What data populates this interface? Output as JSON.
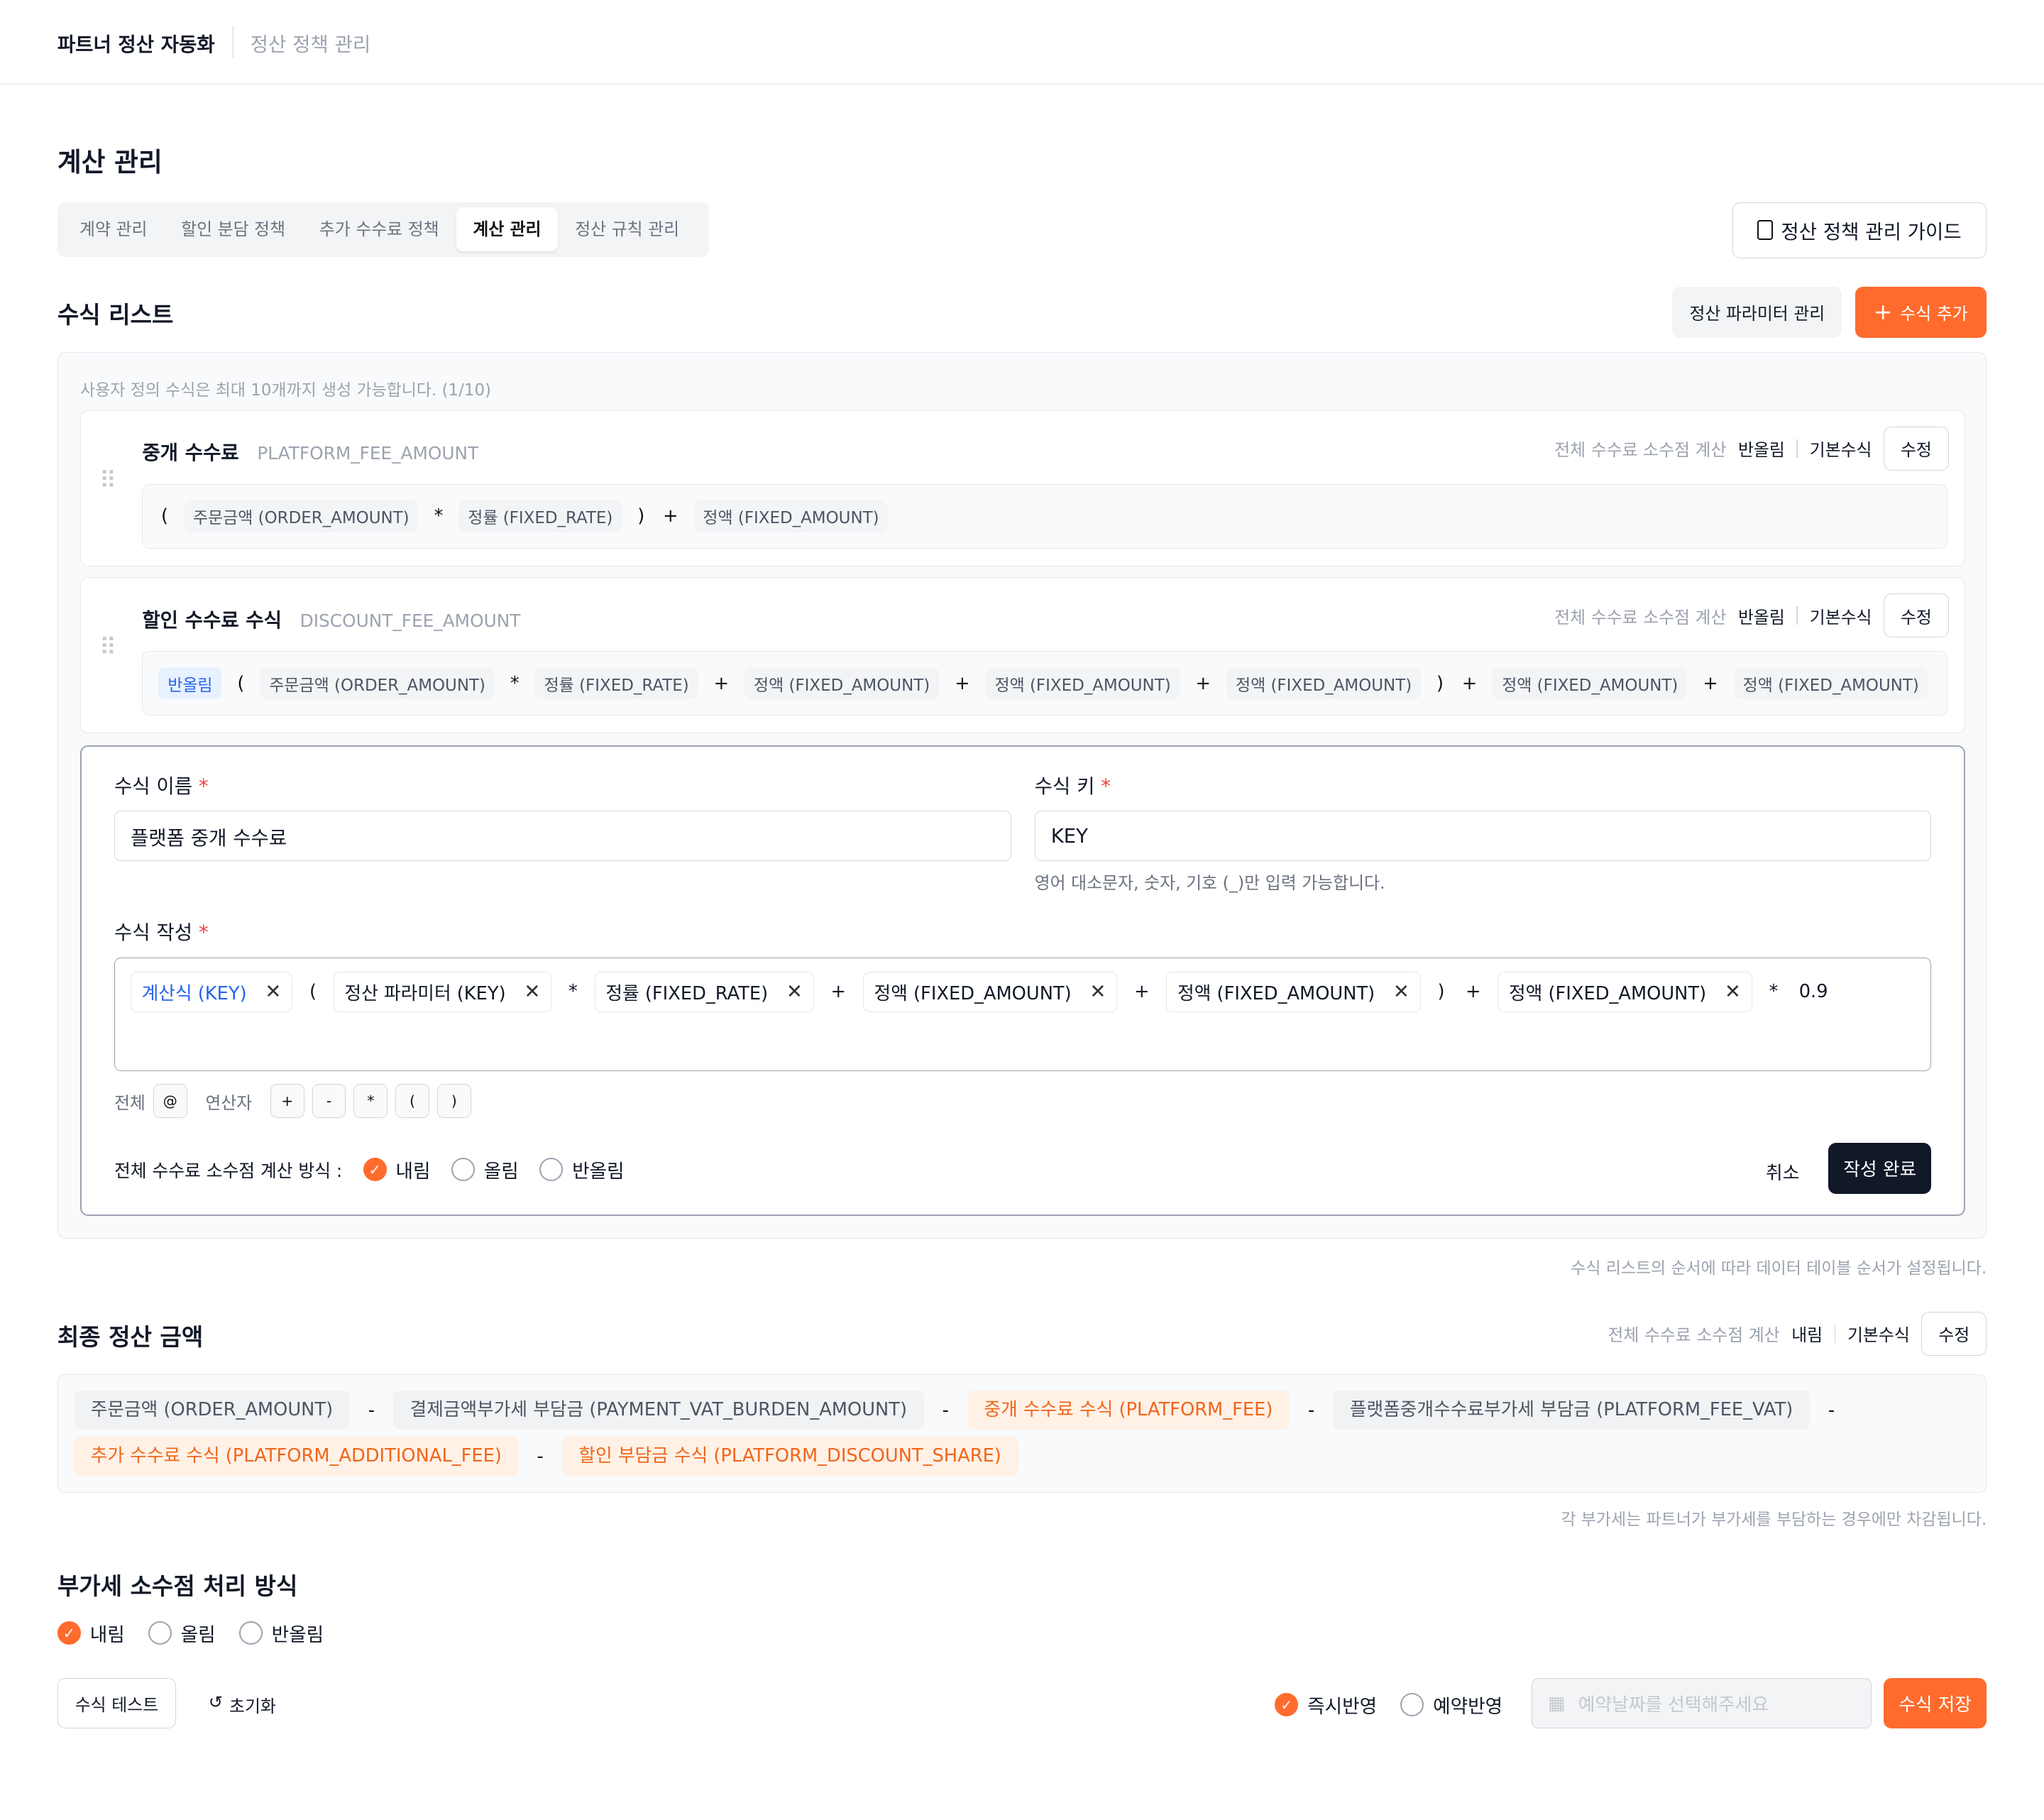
{
  "header": {
    "app": "파트너 정산 자동화",
    "section": "정산 정책 관리"
  },
  "page_title": "계산 관리",
  "tabs": [
    {
      "label": "계약 관리",
      "active": false
    },
    {
      "label": "할인 분담 정책",
      "active": false
    },
    {
      "label": "추가 수수료 정책",
      "active": false
    },
    {
      "label": "계산 관리",
      "active": true
    },
    {
      "label": "정산 규칙 관리",
      "active": false
    }
  ],
  "guide_button": "정산 정책 관리 가이드",
  "formula_list": {
    "title": "수식 리스트",
    "param_button": "정산 파라미터 관리",
    "add_button": "수식 추가",
    "note": "사용자 정의 수식은 최대 10개까지 생성 가능합니다. (1/10)",
    "items": [
      {
        "name": "중개 수수료",
        "key": "PLATFORM_FEE_AMOUNT",
        "meta_label": "전체 수수료 소수점 계산",
        "rounding": "반올림",
        "type": "기본수식",
        "edit": "수정",
        "tokens": [
          {
            "t": "op",
            "v": "("
          },
          {
            "t": "chip",
            "v": "주문금액 (ORDER_AMOUNT)"
          },
          {
            "t": "op",
            "v": "*"
          },
          {
            "t": "chip",
            "v": "정률 (FIXED_RATE)"
          },
          {
            "t": "op",
            "v": ")"
          },
          {
            "t": "op",
            "v": "+"
          },
          {
            "t": "chip",
            "v": "정액 (FIXED_AMOUNT)"
          }
        ]
      },
      {
        "name": "할인 수수료 수식",
        "key": "DISCOUNT_FEE_AMOUNT",
        "meta_label": "전체 수수료 소수점 계산",
        "rounding": "반올림",
        "type": "기본수식",
        "edit": "수정",
        "tokens": [
          {
            "t": "blue",
            "v": "반올림"
          },
          {
            "t": "op",
            "v": "("
          },
          {
            "t": "chip",
            "v": "주문금액 (ORDER_AMOUNT)"
          },
          {
            "t": "op",
            "v": "*"
          },
          {
            "t": "chip",
            "v": "정률 (FIXED_RATE)"
          },
          {
            "t": "op",
            "v": "+"
          },
          {
            "t": "chip",
            "v": "정액 (FIXED_AMOUNT)"
          },
          {
            "t": "op",
            "v": "+"
          },
          {
            "t": "chip",
            "v": "정액 (FIXED_AMOUNT)"
          },
          {
            "t": "op",
            "v": "+"
          },
          {
            "t": "chip",
            "v": "정액 (FIXED_AMOUNT)"
          },
          {
            "t": "op",
            "v": ")"
          },
          {
            "t": "op",
            "v": "+"
          },
          {
            "t": "chip",
            "v": "정액 (FIXED_AMOUNT)"
          },
          {
            "t": "op",
            "v": "+"
          },
          {
            "t": "chip",
            "v": "정액 (FIXED_AMOUNT)"
          }
        ]
      }
    ],
    "footnote": "수식 리스트의 순서에 따라 데이터 테이블 순서가 설정됩니다."
  },
  "editor": {
    "name_label": "수식 이름",
    "name_value": "플랫폼 중개 수수료",
    "key_label": "수식 키",
    "key_value": "KEY",
    "key_hint": "영어 대소문자, 숫자, 기호 (_)만 입력 가능합니다.",
    "formula_label": "수식 작성",
    "required": "*",
    "tokens": [
      {
        "t": "blue",
        "v": "계산식 (KEY)"
      },
      {
        "t": "op",
        "v": "("
      },
      {
        "t": "chip",
        "v": "정산 파라미터 (KEY)"
      },
      {
        "t": "op",
        "v": "*"
      },
      {
        "t": "chip",
        "v": "정률 (FIXED_RATE)"
      },
      {
        "t": "op",
        "v": "+"
      },
      {
        "t": "chip",
        "v": "정액 (FIXED_AMOUNT)"
      },
      {
        "t": "op",
        "v": "+"
      },
      {
        "t": "chip",
        "v": "정액 (FIXED_AMOUNT)"
      },
      {
        "t": "op",
        "v": ")"
      },
      {
        "t": "op",
        "v": "+"
      },
      {
        "t": "chip",
        "v": "정액 (FIXED_AMOUNT)"
      },
      {
        "t": "op",
        "v": "*"
      },
      {
        "t": "op",
        "v": "0.9"
      }
    ],
    "all_label": "전체",
    "all_key": "@",
    "ops_label": "연산자",
    "ops": [
      "+",
      "-",
      "*",
      "(",
      ")"
    ],
    "rounding_label": "전체 수수료 소수점 계산 방식 :",
    "rounding_options": [
      {
        "label": "내림",
        "checked": true
      },
      {
        "label": "올림",
        "checked": false
      },
      {
        "label": "반올림",
        "checked": false
      }
    ],
    "cancel": "취소",
    "done": "작성 완료"
  },
  "final": {
    "title": "최종 정산 금액",
    "meta_label": "전체 수수료 소수점 계산",
    "rounding": "내림",
    "type": "기본수식",
    "edit": "수정",
    "tokens": [
      {
        "t": "f",
        "v": "주문금액 (ORDER_AMOUNT)"
      },
      {
        "t": "op",
        "v": "-"
      },
      {
        "t": "f",
        "v": "결제금액부가세 부담금 (PAYMENT_VAT_BURDEN_AMOUNT)"
      },
      {
        "t": "op",
        "v": "-"
      },
      {
        "t": "or",
        "v": "중개 수수료 수식 (PLATFORM_FEE)"
      },
      {
        "t": "op",
        "v": "-"
      },
      {
        "t": "f",
        "v": "플랫폼중개수수료부가세 부담금 (PLATFORM_FEE_VAT)"
      },
      {
        "t": "op",
        "v": "-"
      },
      {
        "t": "or",
        "v": "추가 수수료 수식 (PLATFORM_ADDITIONAL_FEE)"
      },
      {
        "t": "op",
        "v": "-"
      },
      {
        "t": "or",
        "v": "할인 부담금 수식 (PLATFORM_DISCOUNT_SHARE)"
      }
    ],
    "footnote": "각 부가세는 파트너가 부가세를 부담하는 경우에만 차감됩니다."
  },
  "vat": {
    "title": "부가세 소수점 처리 방식",
    "options": [
      {
        "label": "내림",
        "checked": true
      },
      {
        "label": "올림",
        "checked": false
      },
      {
        "label": "반올림",
        "checked": false
      }
    ]
  },
  "bottom": {
    "test": "수식 테스트",
    "reset": "초기화",
    "apply_options": [
      {
        "label": "즉시반영",
        "checked": true
      },
      {
        "label": "예약반영",
        "checked": false
      }
    ],
    "date_placeholder": "예약날짜를 선택해주세요",
    "save": "수식 저장"
  },
  "colors": {
    "accent": "#FF6B2C",
    "chip_blue": "#2563EB",
    "chip_orange": "#F0661A"
  }
}
